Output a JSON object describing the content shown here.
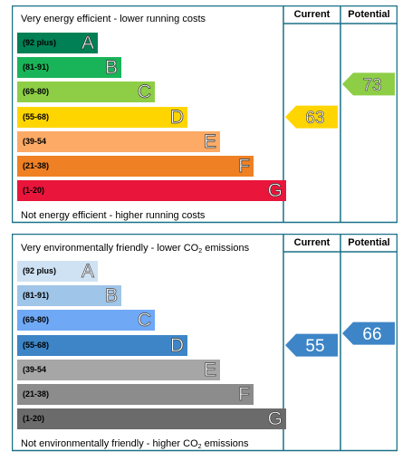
{
  "energy": {
    "header_top": "Very energy efficient - lower running costs",
    "header_bottom": "Not energy efficient - higher running costs",
    "col_current": "Current",
    "col_potential": "Potential",
    "bands": [
      {
        "range": "(92 plus)",
        "letter": "A",
        "color": "#008054",
        "fill": 0.27
      },
      {
        "range": "(81-91)",
        "letter": "B",
        "color": "#19b459",
        "fill": 0.35
      },
      {
        "range": "(69-80)",
        "letter": "C",
        "color": "#8dce46",
        "fill": 0.46
      },
      {
        "range": "(55-68)",
        "letter": "D",
        "color": "#ffd500",
        "fill": 0.57
      },
      {
        "range": "(39-54",
        "letter": "E",
        "color": "#fcaa65",
        "fill": 0.68
      },
      {
        "range": "(21-38)",
        "letter": "F",
        "color": "#ef8023",
        "fill": 0.79
      },
      {
        "range": "(1-20)",
        "letter": "G",
        "color": "#e9153b",
        "fill": 0.9
      }
    ],
    "current": {
      "value": "63",
      "band": "D",
      "color": "#ffd500"
    },
    "potential": {
      "value": "73",
      "band": "C",
      "color": "#8dce46"
    }
  },
  "environmental": {
    "header_top_prefix": "Very environmentally friendly - lower CO",
    "header_top_sub": "2",
    "header_top_suffix": " emissions",
    "header_bottom_prefix": "Not environmentally friendly - higher CO",
    "header_bottom_sub": "2",
    "header_bottom_suffix": " emissions",
    "col_current": "Current",
    "col_potential": "Potential",
    "bands": [
      {
        "range": "(92 plus)",
        "letter": "A",
        "color": "#cfe2f3",
        "fill": 0.27
      },
      {
        "range": "(81-91)",
        "letter": "B",
        "color": "#9fc5e8",
        "fill": 0.35
      },
      {
        "range": "(69-80)",
        "letter": "C",
        "color": "#6fa8f5",
        "fill": 0.46
      },
      {
        "range": "(55-68)",
        "letter": "D",
        "color": "#3d85c6",
        "fill": 0.57
      },
      {
        "range": "(39-54",
        "letter": "E",
        "color": "#a6a6a6",
        "fill": 0.68
      },
      {
        "range": "(21-38)",
        "letter": "F",
        "color": "#8c8c8c",
        "fill": 0.79
      },
      {
        "range": "(1-20)",
        "letter": "G",
        "color": "#6b6b6b",
        "fill": 0.9
      }
    ],
    "current": {
      "value": "55",
      "band": "D",
      "color": "#3d85c6"
    },
    "potential": {
      "value": "66",
      "band": "D",
      "color": "#3d85c6"
    }
  },
  "chart_data": [
    {
      "type": "bar",
      "title": "Very energy efficient - lower running costs",
      "categories": [
        "(92 plus) A",
        "(81-91) B",
        "(69-80) C",
        "(55-68) D",
        "(39-54 E",
        "(21-38) F",
        "(1-20) G"
      ],
      "current": 63,
      "potential": 73
    },
    {
      "type": "bar",
      "title": "Very environmentally friendly - lower CO2 emissions",
      "categories": [
        "(92 plus) A",
        "(81-91) B",
        "(69-80) C",
        "(55-68) D",
        "(39-54 E",
        "(21-38) F",
        "(1-20) G"
      ],
      "current": 55,
      "potential": 66
    }
  ]
}
